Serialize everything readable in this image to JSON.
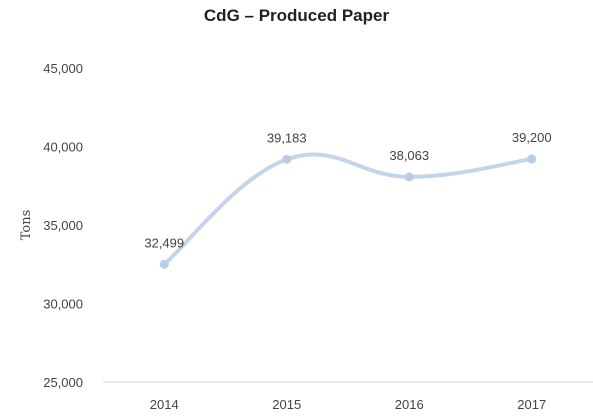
{
  "chart_data": {
    "type": "line",
    "title": "CdG – Produced Paper",
    "xlabel": "",
    "ylabel": "Tons",
    "categories": [
      "2014",
      "2015",
      "2016",
      "2017"
    ],
    "series": [
      {
        "values": [
          32499,
          39183,
          38063,
          39200
        ]
      }
    ],
    "data_labels": [
      "32,499",
      "39,183",
      "38,063",
      "39,200"
    ],
    "y_ticks": [
      "25,000",
      "30,000",
      "35,000",
      "40,000",
      "45,000"
    ],
    "ylim": [
      25000,
      45000
    ],
    "grid": false,
    "line_color": "#c3d5ea",
    "marker_color": "#b9cde6"
  }
}
